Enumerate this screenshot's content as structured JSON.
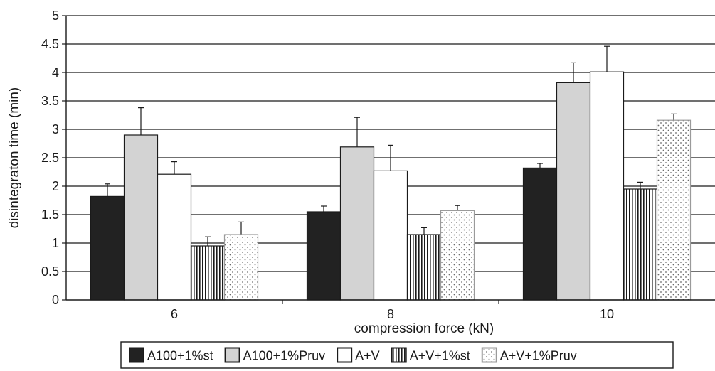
{
  "chart_data": {
    "type": "bar",
    "title": "",
    "xlabel": "compression force (kN)",
    "ylabel": "disintegraton time (min)",
    "ylim": [
      0,
      5
    ],
    "yticks": [
      "0",
      "0.5",
      "1",
      "1.5",
      "2",
      "2.5",
      "3",
      "3.5",
      "4",
      "4.5",
      "5"
    ],
    "categories": [
      "6",
      "8",
      "10"
    ],
    "grid": true,
    "legend_position": "bottom",
    "series": [
      {
        "name": "A100+1%st",
        "values": [
          1.82,
          1.55,
          2.32
        ],
        "errors": [
          0.22,
          0.1,
          0.08
        ],
        "fill": "solid-black",
        "color": "#222222"
      },
      {
        "name": "A100+1%Pruv",
        "values": [
          2.9,
          2.69,
          3.82
        ],
        "errors": [
          0.48,
          0.52,
          0.35
        ],
        "fill": "solid-grey",
        "color": "#d3d3d3"
      },
      {
        "name": "A+V",
        "values": [
          2.21,
          2.27,
          4.01
        ],
        "errors": [
          0.22,
          0.45,
          0.45
        ],
        "fill": "white",
        "color": "#ffffff"
      },
      {
        "name": "A+V+1%st",
        "values": [
          0.95,
          1.15,
          1.95
        ],
        "errors": [
          0.16,
          0.12,
          0.12
        ],
        "fill": "vertical-stripes",
        "color": "#1a1a1a"
      },
      {
        "name": "A+V+1%Pruv",
        "values": [
          1.15,
          1.57,
          3.16
        ],
        "errors": [
          0.22,
          0.09,
          0.11
        ],
        "fill": "dots",
        "color": "#888888"
      }
    ]
  }
}
